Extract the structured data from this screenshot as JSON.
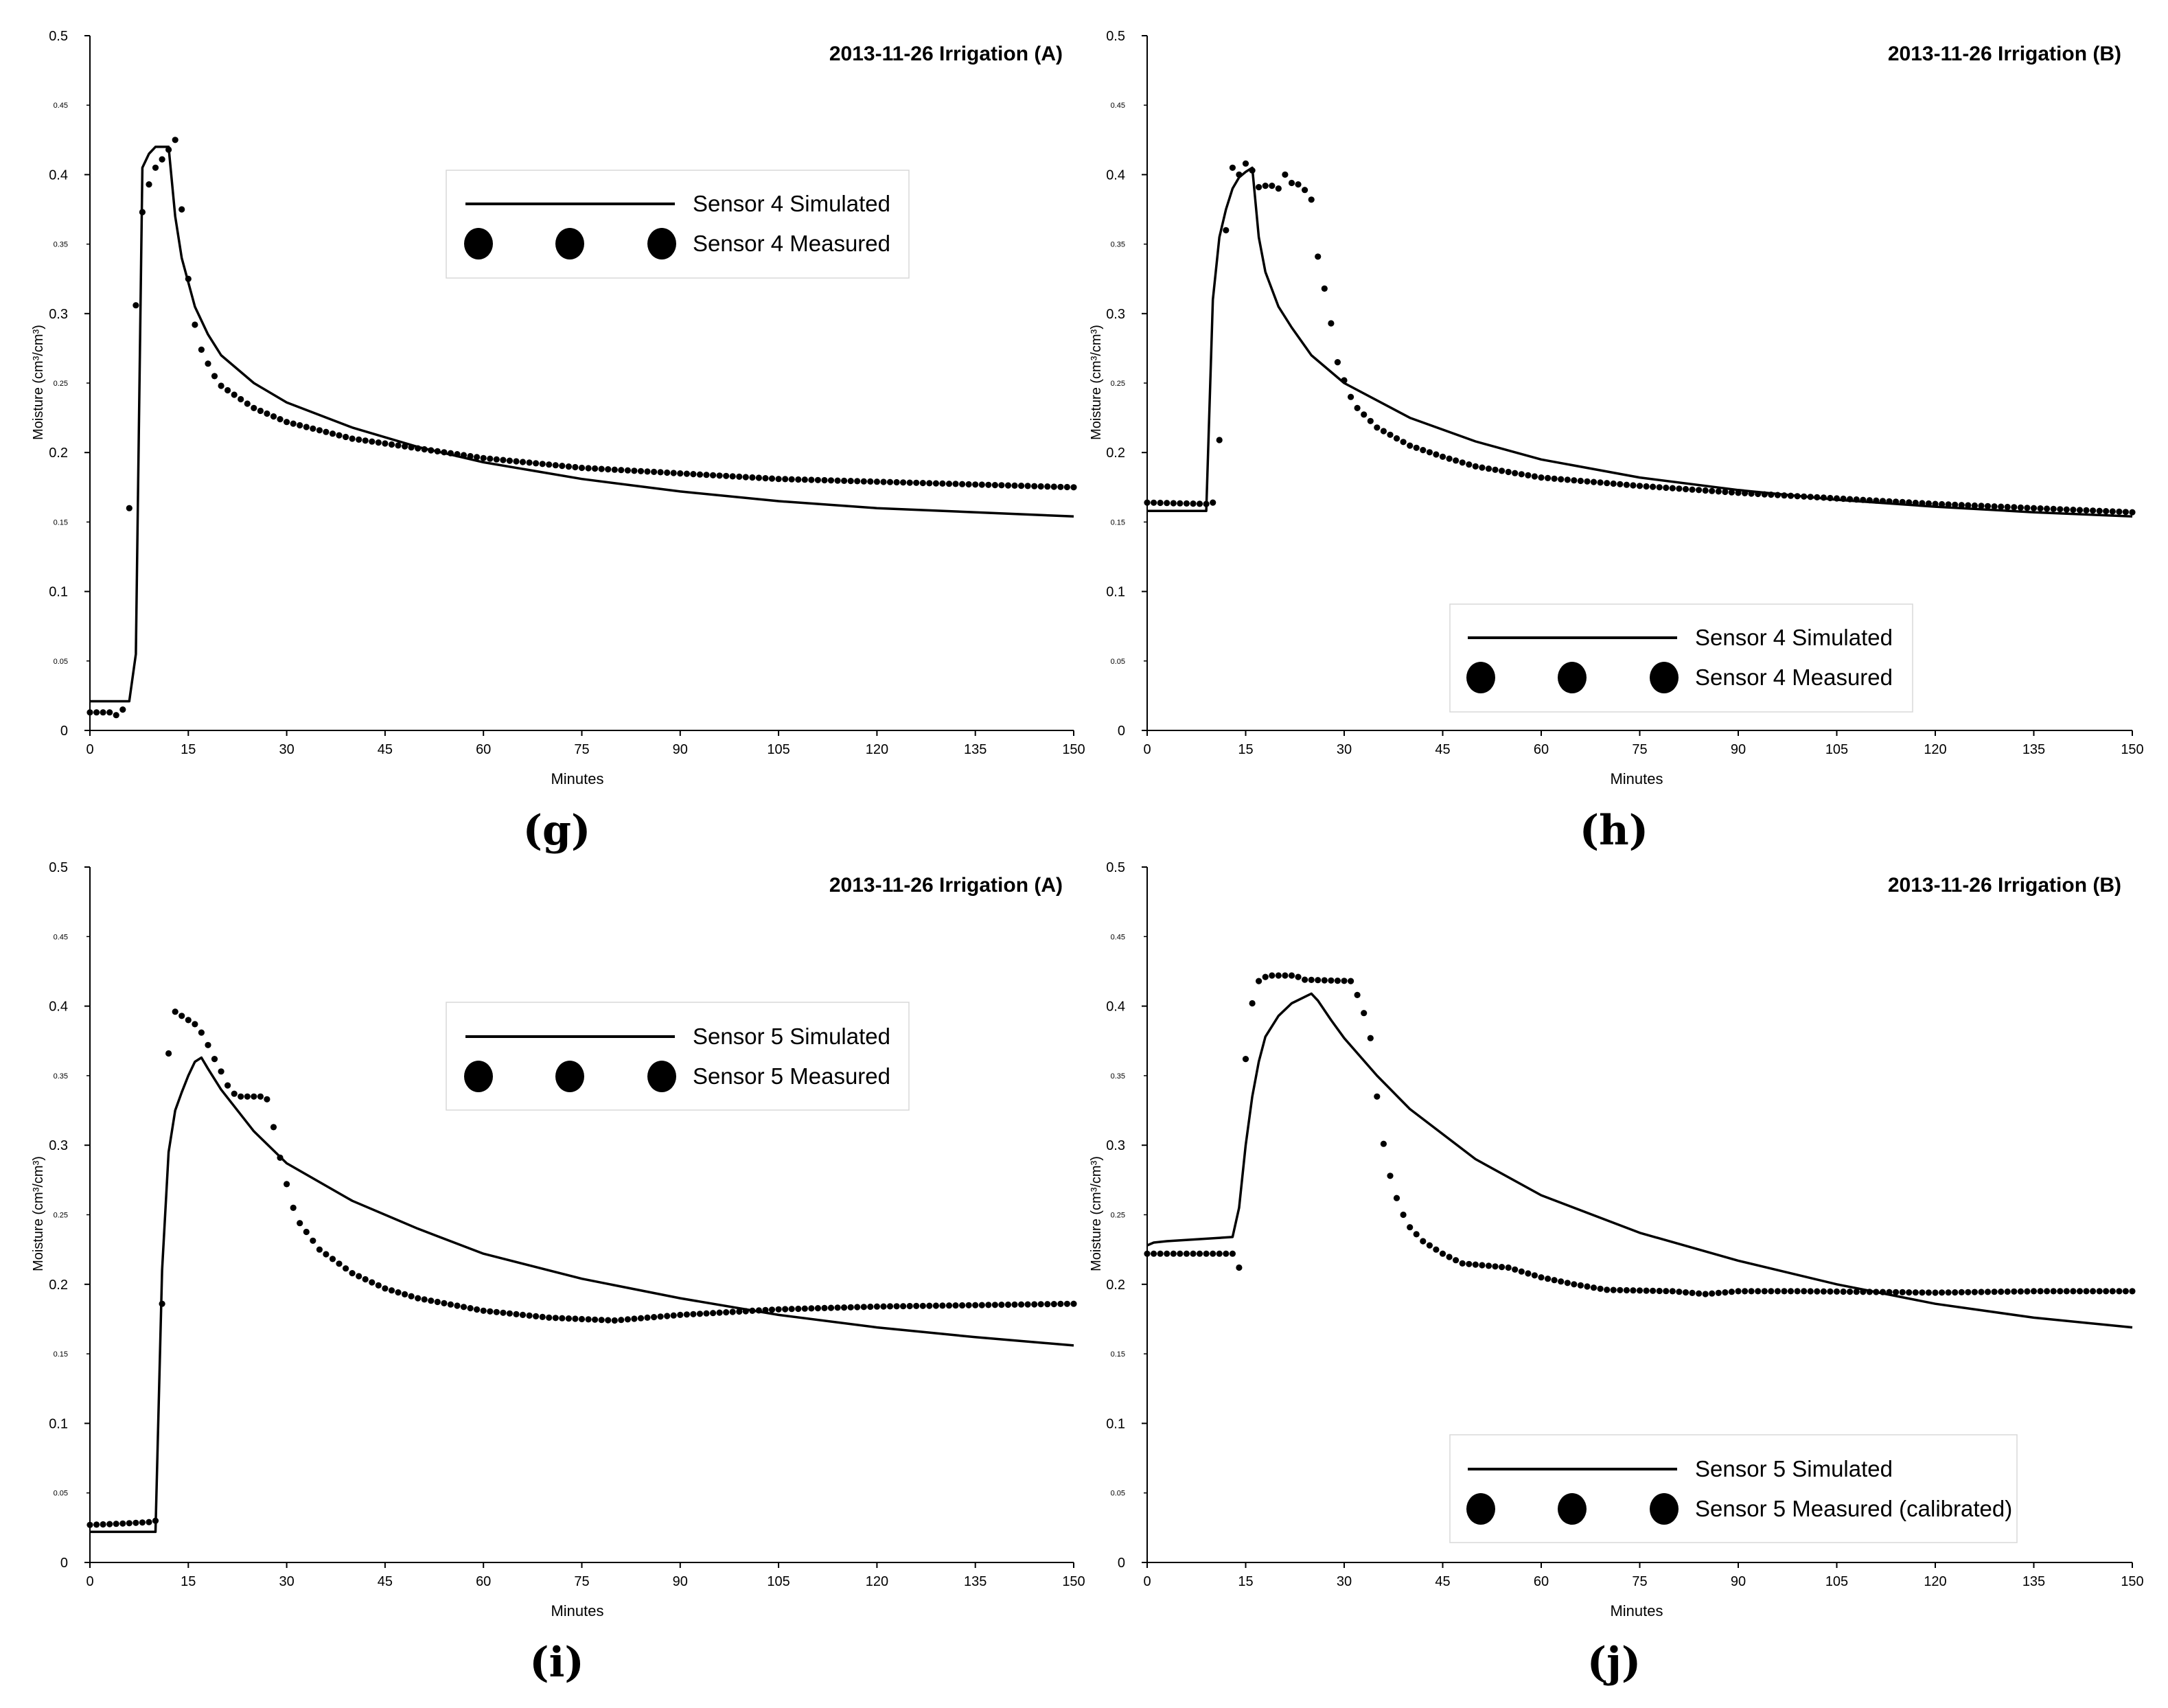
{
  "chart_data": [
    {
      "type": "line",
      "panel_label": "(g)",
      "title": "2013-11-26 Irrigation (A)",
      "xlabel": "Minutes",
      "ylabel": "Moisture (cm³/cm³)",
      "xlim": [
        0,
        150
      ],
      "ylim": [
        0,
        0.5
      ],
      "xticks": [
        "0",
        "15",
        "30",
        "45",
        "60",
        "75",
        "90",
        "105",
        "120",
        "135",
        "150"
      ],
      "yticks_major": [
        "0",
        "0.1",
        "0.2",
        "0.3",
        "0.4",
        "0.5"
      ],
      "yticks_minor": [
        "0.05",
        "0.15",
        "0.25",
        "0.35",
        "0.45"
      ],
      "legend_position": "top-center",
      "series": [
        {
          "name": "Sensor 4 Simulated",
          "style": "line",
          "points": [
            [
              0,
              0.021
            ],
            [
              6,
              0.021
            ],
            [
              7,
              0.055
            ],
            [
              8,
              0.405
            ],
            [
              9,
              0.415
            ],
            [
              10,
              0.42
            ],
            [
              12,
              0.42
            ],
            [
              13,
              0.37
            ],
            [
              14,
              0.34
            ],
            [
              16,
              0.305
            ],
            [
              18,
              0.285
            ],
            [
              20,
              0.27
            ],
            [
              25,
              0.25
            ],
            [
              30,
              0.236
            ],
            [
              40,
              0.218
            ],
            [
              50,
              0.204
            ],
            [
              60,
              0.193
            ],
            [
              75,
              0.181
            ],
            [
              90,
              0.172
            ],
            [
              105,
              0.165
            ],
            [
              120,
              0.16
            ],
            [
              135,
              0.157
            ],
            [
              150,
              0.154
            ]
          ]
        },
        {
          "name": "Sensor 4 Measured",
          "style": "dots",
          "step": 1,
          "points": [
            [
              0,
              0.013
            ],
            [
              1,
              0.013
            ],
            [
              2,
              0.013
            ],
            [
              3,
              0.013
            ],
            [
              4,
              0.011
            ],
            [
              5,
              0.015
            ],
            [
              6,
              0.16
            ],
            [
              7,
              0.306
            ],
            [
              8,
              0.373
            ],
            [
              9,
              0.393
            ],
            [
              10,
              0.405
            ],
            [
              11,
              0.411
            ],
            [
              12,
              0.418
            ],
            [
              13,
              0.425
            ],
            [
              14,
              0.375
            ],
            [
              15,
              0.325
            ],
            [
              16,
              0.292
            ],
            [
              17,
              0.274
            ],
            [
              18,
              0.264
            ],
            [
              19,
              0.255
            ],
            [
              20,
              0.248
            ],
            [
              25,
              0.232
            ],
            [
              30,
              0.222
            ],
            [
              40,
              0.21
            ],
            [
              50,
              0.203
            ],
            [
              60,
              0.196
            ],
            [
              75,
              0.189
            ],
            [
              90,
              0.185
            ],
            [
              105,
              0.181
            ],
            [
              120,
              0.179
            ],
            [
              135,
              0.177
            ],
            [
              150,
              0.175
            ]
          ]
        }
      ]
    },
    {
      "type": "line",
      "panel_label": "(h)",
      "title": "2013-11-26 Irrigation (B)",
      "xlabel": "Minutes",
      "ylabel": "Moisture (cm³/cm³)",
      "xlim": [
        0,
        150
      ],
      "ylim": [
        0,
        0.5
      ],
      "xticks": [
        "0",
        "15",
        "30",
        "45",
        "60",
        "75",
        "90",
        "105",
        "120",
        "135",
        "150"
      ],
      "yticks_major": [
        "0",
        "0.1",
        "0.2",
        "0.3",
        "0.4",
        "0.5"
      ],
      "yticks_minor": [
        "0.05",
        "0.15",
        "0.25",
        "0.35",
        "0.45"
      ],
      "legend_position": "bottom-center",
      "series": [
        {
          "name": "Sensor 4 Simulated",
          "style": "line",
          "points": [
            [
              0,
              0.158
            ],
            [
              9,
              0.158
            ],
            [
              10,
              0.31
            ],
            [
              11,
              0.355
            ],
            [
              12,
              0.375
            ],
            [
              13,
              0.39
            ],
            [
              14,
              0.398
            ],
            [
              15,
              0.402
            ],
            [
              16,
              0.405
            ],
            [
              17,
              0.355
            ],
            [
              18,
              0.33
            ],
            [
              20,
              0.305
            ],
            [
              22,
              0.29
            ],
            [
              25,
              0.27
            ],
            [
              30,
              0.25
            ],
            [
              40,
              0.225
            ],
            [
              50,
              0.208
            ],
            [
              60,
              0.195
            ],
            [
              75,
              0.182
            ],
            [
              90,
              0.173
            ],
            [
              105,
              0.166
            ],
            [
              120,
              0.161
            ],
            [
              135,
              0.157
            ],
            [
              150,
              0.154
            ]
          ]
        },
        {
          "name": "Sensor 4 Measured",
          "style": "dots",
          "step": 1,
          "points": [
            [
              0,
              0.164
            ],
            [
              9,
              0.163
            ],
            [
              10,
              0.164
            ],
            [
              11,
              0.209
            ],
            [
              12,
              0.36
            ],
            [
              13,
              0.405
            ],
            [
              14,
              0.4
            ],
            [
              15,
              0.408
            ],
            [
              16,
              0.403
            ],
            [
              17,
              0.391
            ],
            [
              18,
              0.392
            ],
            [
              19,
              0.392
            ],
            [
              20,
              0.39
            ],
            [
              21,
              0.4
            ],
            [
              22,
              0.394
            ],
            [
              23,
              0.393
            ],
            [
              24,
              0.389
            ],
            [
              25,
              0.382
            ],
            [
              26,
              0.341
            ],
            [
              27,
              0.318
            ],
            [
              28,
              0.293
            ],
            [
              29,
              0.265
            ],
            [
              30,
              0.252
            ],
            [
              31,
              0.24
            ],
            [
              32,
              0.232
            ],
            [
              35,
              0.218
            ],
            [
              40,
              0.205
            ],
            [
              45,
              0.197
            ],
            [
              50,
              0.19
            ],
            [
              60,
              0.182
            ],
            [
              75,
              0.176
            ],
            [
              90,
              0.171
            ],
            [
              105,
              0.167
            ],
            [
              120,
              0.163
            ],
            [
              135,
              0.16
            ],
            [
              150,
              0.157
            ]
          ]
        }
      ]
    },
    {
      "type": "line",
      "panel_label": "(i)",
      "title": "2013-11-26 Irrigation (A)",
      "xlabel": "Minutes",
      "ylabel": "Moisture (cm³/cm³)",
      "xlim": [
        0,
        150
      ],
      "ylim": [
        0,
        0.5
      ],
      "xticks": [
        "0",
        "15",
        "30",
        "45",
        "60",
        "75",
        "90",
        "105",
        "120",
        "135",
        "150"
      ],
      "yticks_major": [
        "0",
        "0.1",
        "0.2",
        "0.3",
        "0.4",
        "0.5"
      ],
      "yticks_minor": [
        "0.05",
        "0.15",
        "0.25",
        "0.35",
        "0.45"
      ],
      "legend_position": "top-center",
      "series": [
        {
          "name": "Sensor 5 Simulated",
          "style": "line",
          "points": [
            [
              0,
              0.022
            ],
            [
              10,
              0.022
            ],
            [
              11,
              0.21
            ],
            [
              12,
              0.295
            ],
            [
              13,
              0.325
            ],
            [
              14,
              0.338
            ],
            [
              15,
              0.35
            ],
            [
              16,
              0.36
            ],
            [
              17,
              0.363
            ],
            [
              18,
              0.355
            ],
            [
              20,
              0.34
            ],
            [
              25,
              0.31
            ],
            [
              30,
              0.287
            ],
            [
              40,
              0.26
            ],
            [
              50,
              0.24
            ],
            [
              60,
              0.222
            ],
            [
              75,
              0.204
            ],
            [
              90,
              0.19
            ],
            [
              105,
              0.178
            ],
            [
              120,
              0.169
            ],
            [
              135,
              0.162
            ],
            [
              150,
              0.156
            ]
          ]
        },
        {
          "name": "Sensor 5 Measured",
          "style": "dots",
          "step": 1,
          "points": [
            [
              0,
              0.027
            ],
            [
              5,
              0.028
            ],
            [
              9,
              0.029
            ],
            [
              10,
              0.03
            ],
            [
              11,
              0.186
            ],
            [
              12,
              0.366
            ],
            [
              13,
              0.396
            ],
            [
              14,
              0.393
            ],
            [
              15,
              0.39
            ],
            [
              16,
              0.387
            ],
            [
              17,
              0.381
            ],
            [
              18,
              0.372
            ],
            [
              19,
              0.362
            ],
            [
              20,
              0.353
            ],
            [
              21,
              0.343
            ],
            [
              22,
              0.337
            ],
            [
              23,
              0.335
            ],
            [
              24,
              0.335
            ],
            [
              25,
              0.335
            ],
            [
              26,
              0.335
            ],
            [
              27,
              0.333
            ],
            [
              28,
              0.313
            ],
            [
              29,
              0.291
            ],
            [
              30,
              0.272
            ],
            [
              31,
              0.255
            ],
            [
              32,
              0.244
            ],
            [
              35,
              0.225
            ],
            [
              40,
              0.208
            ],
            [
              45,
              0.197
            ],
            [
              50,
              0.19
            ],
            [
              60,
              0.181
            ],
            [
              70,
              0.176
            ],
            [
              80,
              0.174
            ],
            [
              90,
              0.178
            ],
            [
              105,
              0.182
            ],
            [
              120,
              0.184
            ],
            [
              135,
              0.185
            ],
            [
              150,
              0.186
            ]
          ]
        }
      ]
    },
    {
      "type": "line",
      "panel_label": "(j)",
      "title": "2013-11-26 Irrigation (B)",
      "xlabel": "Minutes",
      "ylabel": "Moisture (cm³/cm³)",
      "xlim": [
        0,
        150
      ],
      "ylim": [
        0,
        0.5
      ],
      "xticks": [
        "0",
        "15",
        "30",
        "45",
        "60",
        "75",
        "90",
        "105",
        "120",
        "135",
        "150"
      ],
      "yticks_major": [
        "0",
        "0.1",
        "0.2",
        "0.3",
        "0.4",
        "0.5"
      ],
      "yticks_minor": [
        "0.05",
        "0.15",
        "0.25",
        "0.35",
        "0.45"
      ],
      "legend_position": "bottom-center",
      "series": [
        {
          "name": "Sensor 5 Simulated",
          "style": "line",
          "points": [
            [
              0,
              0.228
            ],
            [
              1,
              0.23
            ],
            [
              3,
              0.231
            ],
            [
              13,
              0.234
            ],
            [
              14,
              0.255
            ],
            [
              15,
              0.3
            ],
            [
              16,
              0.335
            ],
            [
              17,
              0.36
            ],
            [
              18,
              0.378
            ],
            [
              20,
              0.393
            ],
            [
              22,
              0.402
            ],
            [
              25,
              0.409
            ],
            [
              26,
              0.404
            ],
            [
              28,
              0.39
            ],
            [
              30,
              0.377
            ],
            [
              35,
              0.35
            ],
            [
              40,
              0.326
            ],
            [
              50,
              0.29
            ],
            [
              60,
              0.264
            ],
            [
              75,
              0.237
            ],
            [
              90,
              0.217
            ],
            [
              105,
              0.2
            ],
            [
              120,
              0.186
            ],
            [
              135,
              0.176
            ],
            [
              150,
              0.169
            ]
          ]
        },
        {
          "name": "Sensor 5 Measured (calibrated)",
          "style": "dots",
          "step": 1,
          "points": [
            [
              0,
              0.222
            ],
            [
              13,
              0.222
            ],
            [
              14,
              0.212
            ],
            [
              15,
              0.362
            ],
            [
              16,
              0.402
            ],
            [
              17,
              0.418
            ],
            [
              18,
              0.421
            ],
            [
              19,
              0.422
            ],
            [
              22,
              0.422
            ],
            [
              23,
              0.421
            ],
            [
              24,
              0.419
            ],
            [
              31,
              0.418
            ],
            [
              32,
              0.408
            ],
            [
              33,
              0.395
            ],
            [
              34,
              0.377
            ],
            [
              35,
              0.335
            ],
            [
              36,
              0.301
            ],
            [
              37,
              0.278
            ],
            [
              38,
              0.262
            ],
            [
              39,
              0.25
            ],
            [
              40,
              0.241
            ],
            [
              42,
              0.231
            ],
            [
              45,
              0.222
            ],
            [
              48,
              0.215
            ],
            [
              55,
              0.212
            ],
            [
              60,
              0.205
            ],
            [
              65,
              0.2
            ],
            [
              70,
              0.196
            ],
            [
              80,
              0.195
            ],
            [
              85,
              0.193
            ],
            [
              90,
              0.195
            ],
            [
              100,
              0.195
            ],
            [
              120,
              0.194
            ],
            [
              135,
              0.195
            ],
            [
              150,
              0.195
            ]
          ]
        }
      ]
    }
  ]
}
